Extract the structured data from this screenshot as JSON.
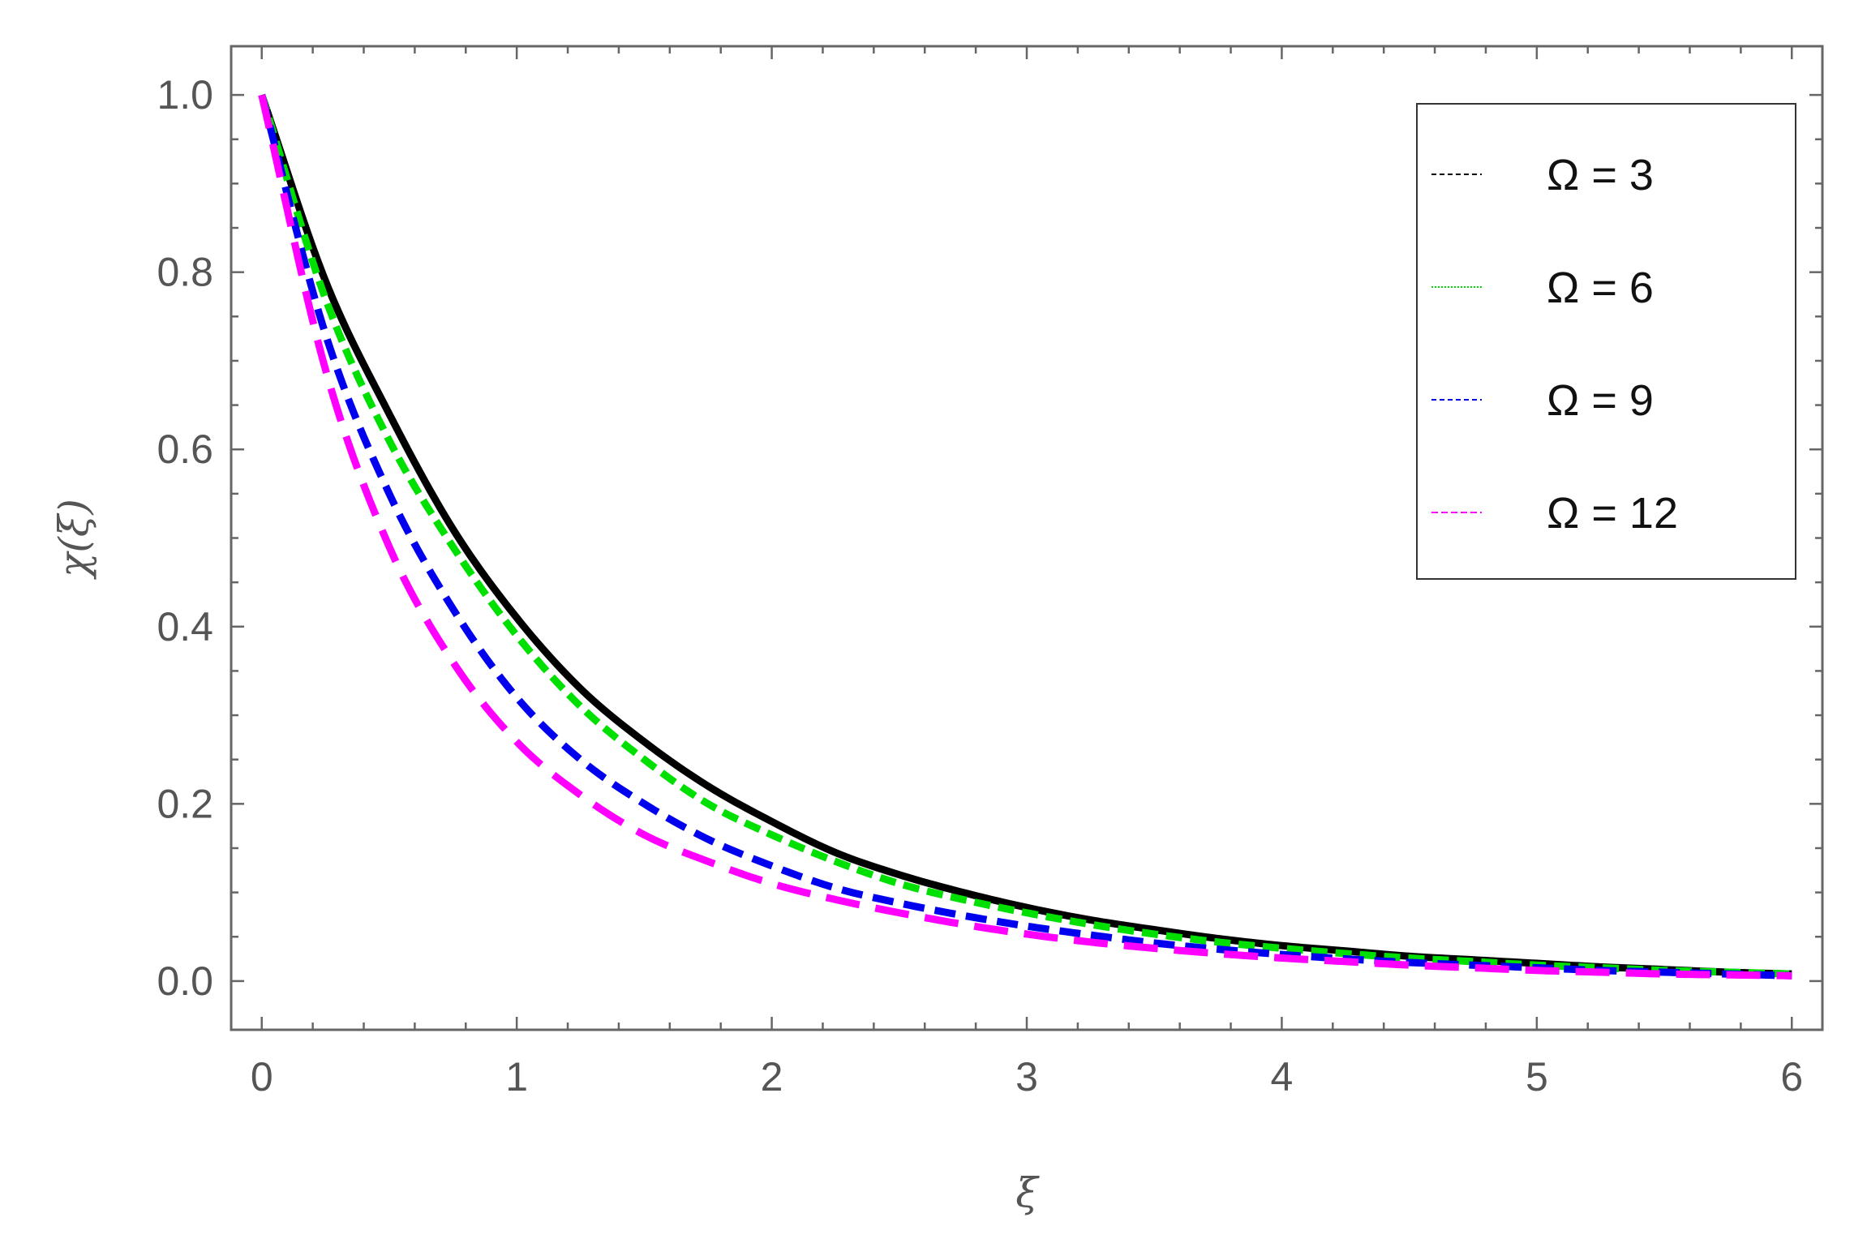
{
  "chart_data": {
    "type": "line",
    "xlabel": "ξ",
    "ylabel": "χ(ξ)",
    "xlim": [
      -0.12,
      6.12
    ],
    "ylim": [
      -0.055,
      1.055
    ],
    "xticks": [
      0,
      1,
      2,
      3,
      4,
      5,
      6
    ],
    "xtick_labels": [
      "0",
      "1",
      "2",
      "3",
      "4",
      "5",
      "6"
    ],
    "yticks": [
      0.0,
      0.2,
      0.4,
      0.6,
      0.8,
      1.0
    ],
    "ytick_labels": [
      "0.0",
      "0.2",
      "0.4",
      "0.6",
      "0.8",
      "1.0"
    ],
    "grid": false,
    "legend_position": "top-right",
    "x": [
      0,
      0.25,
      0.5,
      0.75,
      1,
      1.25,
      1.5,
      1.75,
      2,
      2.25,
      2.5,
      2.75,
      3,
      3.25,
      3.5,
      3.75,
      4,
      4.25,
      4.5,
      4.75,
      5,
      5.25,
      5.5,
      5.75,
      6
    ],
    "series": [
      {
        "name": "Ω = 3",
        "color": "#000000",
        "style": "solid",
        "values": [
          1.0,
          0.79,
          0.64,
          0.51,
          0.41,
          0.33,
          0.27,
          0.22,
          0.18,
          0.145,
          0.12,
          0.1,
          0.083,
          0.069,
          0.058,
          0.048,
          0.04,
          0.034,
          0.028,
          0.024,
          0.02,
          0.016,
          0.013,
          0.01,
          0.008
        ]
      },
      {
        "name": "Ω = 6",
        "color": "#00e000",
        "style": "dotted",
        "values": [
          1.0,
          0.77,
          0.61,
          0.49,
          0.39,
          0.31,
          0.25,
          0.2,
          0.165,
          0.135,
          0.11,
          0.092,
          0.077,
          0.064,
          0.053,
          0.044,
          0.037,
          0.031,
          0.026,
          0.022,
          0.018,
          0.015,
          0.012,
          0.01,
          0.008
        ]
      },
      {
        "name": "Ω = 9",
        "color": "#0000ee",
        "style": "dashed",
        "values": [
          1.0,
          0.73,
          0.55,
          0.42,
          0.32,
          0.25,
          0.2,
          0.16,
          0.13,
          0.105,
          0.088,
          0.074,
          0.062,
          0.052,
          0.043,
          0.036,
          0.03,
          0.025,
          0.021,
          0.018,
          0.015,
          0.012,
          0.01,
          0.008,
          0.006
        ]
      },
      {
        "name": "Ω = 12",
        "color": "#ff00ff",
        "style": "longdash",
        "values": [
          1.0,
          0.69,
          0.49,
          0.36,
          0.27,
          0.21,
          0.165,
          0.135,
          0.11,
          0.092,
          0.077,
          0.064,
          0.053,
          0.044,
          0.037,
          0.031,
          0.026,
          0.022,
          0.018,
          0.015,
          0.012,
          0.01,
          0.008,
          0.007,
          0.006
        ]
      }
    ]
  }
}
